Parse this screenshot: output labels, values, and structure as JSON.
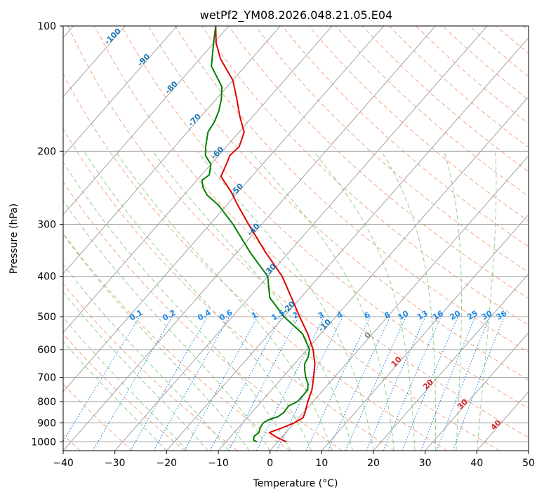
{
  "chart_data": {
    "type": "line",
    "title": "wetPf2_YM08.2026.048.21.05.E04",
    "xlabel": "Temperature (°C)",
    "ylabel": "Pressure (hPa)",
    "xlim": [
      -40,
      50
    ],
    "ylim": [
      1050,
      100
    ],
    "x_ticks": [
      -40,
      -30,
      -20,
      -10,
      0,
      10,
      20,
      30,
      40,
      50
    ],
    "y_ticks": [
      100,
      200,
      300,
      400,
      500,
      600,
      700,
      800,
      900,
      1000
    ],
    "colors": {
      "temperature": "#e00000",
      "dewpoint": "#008000",
      "isotherm": "#9a9a9a",
      "isobar": "#9a9a9a",
      "dry_adiabat": "#f4a582",
      "moist_adiabat": "#8fcf8f",
      "mixing_ratio": "#1e88e5",
      "isotherm_label": "#1f77b4",
      "mixing_label": "#1e88e5",
      "zero_label": "#808080",
      "warm_label": "#d62728"
    },
    "series": [
      {
        "name": "Temperature",
        "points": [
          [
            1000,
            1.7
          ],
          [
            975,
            -1.0
          ],
          [
            950,
            -3.2
          ],
          [
            925,
            -1.5
          ],
          [
            900,
            0.0
          ],
          [
            875,
            0.8
          ],
          [
            850,
            0.3
          ],
          [
            800,
            -1.0
          ],
          [
            750,
            -2.2
          ],
          [
            700,
            -4.0
          ],
          [
            650,
            -6.0
          ],
          [
            600,
            -8.8
          ],
          [
            550,
            -12.5
          ],
          [
            500,
            -17.0
          ],
          [
            450,
            -21.8
          ],
          [
            400,
            -27.2
          ],
          [
            350,
            -34.5
          ],
          [
            300,
            -42.5
          ],
          [
            270,
            -47.8
          ],
          [
            250,
            -51.5
          ],
          [
            230,
            -56.0
          ],
          [
            215,
            -57.0
          ],
          [
            205,
            -57.8
          ],
          [
            195,
            -57.5
          ],
          [
            180,
            -59.0
          ],
          [
            165,
            -62.5
          ],
          [
            150,
            -66.0
          ],
          [
            135,
            -70.0
          ],
          [
            120,
            -76.0
          ],
          [
            110,
            -79.5
          ],
          [
            100,
            -82.5
          ]
        ]
      },
      {
        "name": "Dewpoint",
        "points": [
          [
            1000,
            -4.0
          ],
          [
            990,
            -5.0
          ],
          [
            970,
            -5.5
          ],
          [
            950,
            -5.2
          ],
          [
            925,
            -5.8
          ],
          [
            900,
            -6.0
          ],
          [
            885,
            -5.5
          ],
          [
            870,
            -4.2
          ],
          [
            850,
            -3.8
          ],
          [
            820,
            -4.0
          ],
          [
            800,
            -3.0
          ],
          [
            775,
            -3.0
          ],
          [
            750,
            -3.0
          ],
          [
            725,
            -4.0
          ],
          [
            700,
            -5.5
          ],
          [
            675,
            -6.8
          ],
          [
            650,
            -8.0
          ],
          [
            625,
            -8.5
          ],
          [
            600,
            -9.5
          ],
          [
            550,
            -13.5
          ],
          [
            500,
            -20.0
          ],
          [
            450,
            -26.0
          ],
          [
            400,
            -30.0
          ],
          [
            350,
            -37.5
          ],
          [
            300,
            -45.5
          ],
          [
            270,
            -51.5
          ],
          [
            255,
            -55.5
          ],
          [
            245,
            -57.5
          ],
          [
            235,
            -59.0
          ],
          [
            228,
            -58.5
          ],
          [
            215,
            -60.0
          ],
          [
            205,
            -62.5
          ],
          [
            195,
            -64.0
          ],
          [
            180,
            -66.0
          ],
          [
            170,
            -66.5
          ],
          [
            160,
            -67.5
          ],
          [
            150,
            -69.0
          ],
          [
            140,
            -71.0
          ],
          [
            125,
            -76.5
          ],
          [
            110,
            -80.0
          ],
          [
            100,
            -82.5
          ]
        ]
      }
    ],
    "isotherm_labels": [
      "-100",
      "-90",
      "-80",
      "-70",
      "-60",
      "-50",
      "-40",
      "-30",
      "-20",
      "-10"
    ],
    "isotherm_label_values": [
      -100,
      -90,
      -80,
      -70,
      -60,
      -50,
      -40,
      -30,
      -20,
      -10
    ],
    "mixing_ratio_labels": [
      "0.1",
      "0.2",
      "0.4",
      "0.6",
      "1",
      "1.5",
      "2",
      "3",
      "4",
      "6",
      "8",
      "10",
      "13",
      "16",
      "20",
      "25",
      "30",
      "36"
    ],
    "mixing_ratio_values": [
      0.1,
      0.2,
      0.4,
      0.6,
      1,
      1.5,
      2,
      3,
      4,
      6,
      8,
      10,
      13,
      16,
      20,
      25,
      30,
      36
    ],
    "warm_labels": [
      "0",
      "10",
      "20",
      "30",
      "40"
    ],
    "warm_label_values": [
      0,
      10,
      20,
      30,
      40
    ]
  }
}
